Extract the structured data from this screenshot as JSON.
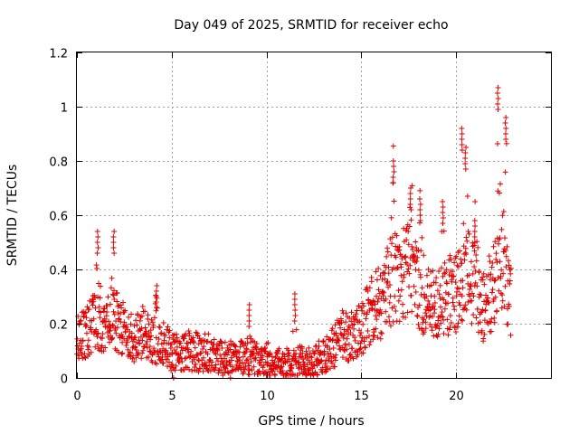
{
  "chart_data": {
    "type": "scatter",
    "title": "Day 049 of 2025, SRMTID for receiver echo",
    "xlabel": "GPS time / hours",
    "ylabel": "SRMTID / TECUs",
    "xlim": [
      0,
      25
    ],
    "ylim": [
      0,
      1.2
    ],
    "xticks": [
      0,
      5,
      10,
      15,
      20
    ],
    "xtick_labels": [
      "0",
      "5",
      "10",
      "15",
      "20"
    ],
    "yticks": [
      0,
      0.2,
      0.4,
      0.6,
      0.8,
      1.0,
      1.2
    ],
    "ytick_labels": [
      "0",
      "0.2",
      "0.4",
      "0.6",
      "0.8",
      "1",
      "1.2"
    ],
    "grid": true,
    "marker": "+",
    "color": "#e00000",
    "x_range_of_data": [
      0,
      22.9
    ],
    "trend": [
      {
        "x": 0.0,
        "y": 0.15
      },
      {
        "x": 0.5,
        "y": 0.17
      },
      {
        "x": 1.0,
        "y": 0.22
      },
      {
        "x": 1.5,
        "y": 0.2
      },
      {
        "x": 2.0,
        "y": 0.22
      },
      {
        "x": 2.5,
        "y": 0.18
      },
      {
        "x": 3.0,
        "y": 0.15
      },
      {
        "x": 3.5,
        "y": 0.17
      },
      {
        "x": 4.0,
        "y": 0.14
      },
      {
        "x": 4.5,
        "y": 0.13
      },
      {
        "x": 5.0,
        "y": 0.1
      },
      {
        "x": 6.0,
        "y": 0.1
      },
      {
        "x": 7.0,
        "y": 0.09
      },
      {
        "x": 8.0,
        "y": 0.07
      },
      {
        "x": 9.0,
        "y": 0.08
      },
      {
        "x": 10.0,
        "y": 0.07
      },
      {
        "x": 11.0,
        "y": 0.05
      },
      {
        "x": 12.0,
        "y": 0.06
      },
      {
        "x": 13.0,
        "y": 0.08
      },
      {
        "x": 13.5,
        "y": 0.11
      },
      {
        "x": 14.0,
        "y": 0.16
      },
      {
        "x": 14.5,
        "y": 0.15
      },
      {
        "x": 15.0,
        "y": 0.18
      },
      {
        "x": 15.5,
        "y": 0.25
      },
      {
        "x": 16.0,
        "y": 0.28
      },
      {
        "x": 16.5,
        "y": 0.35
      },
      {
        "x": 17.0,
        "y": 0.38
      },
      {
        "x": 17.5,
        "y": 0.4
      },
      {
        "x": 18.0,
        "y": 0.34
      },
      {
        "x": 18.5,
        "y": 0.28
      },
      {
        "x": 19.0,
        "y": 0.26
      },
      {
        "x": 19.5,
        "y": 0.3
      },
      {
        "x": 20.0,
        "y": 0.32
      },
      {
        "x": 20.5,
        "y": 0.4
      },
      {
        "x": 21.0,
        "y": 0.32
      },
      {
        "x": 21.5,
        "y": 0.26
      },
      {
        "x": 22.0,
        "y": 0.35
      },
      {
        "x": 22.5,
        "y": 0.4
      },
      {
        "x": 22.9,
        "y": 0.28
      }
    ],
    "peaks": [
      {
        "x": 1.1,
        "y": 0.54
      },
      {
        "x": 1.95,
        "y": 0.54
      },
      {
        "x": 4.2,
        "y": 0.34
      },
      {
        "x": 9.1,
        "y": 0.27
      },
      {
        "x": 11.5,
        "y": 0.31
      },
      {
        "x": 16.7,
        "y": 0.8
      },
      {
        "x": 17.6,
        "y": 0.7
      },
      {
        "x": 18.1,
        "y": 0.66
      },
      {
        "x": 19.3,
        "y": 0.65
      },
      {
        "x": 20.3,
        "y": 0.92
      },
      {
        "x": 20.5,
        "y": 0.85
      },
      {
        "x": 21.0,
        "y": 0.58
      },
      {
        "x": 22.2,
        "y": 1.07
      },
      {
        "x": 22.6,
        "y": 0.96
      }
    ],
    "outliers": [
      {
        "x": 5.1,
        "y": 0.0
      },
      {
        "x": 8.1,
        "y": 0.0
      }
    ]
  }
}
